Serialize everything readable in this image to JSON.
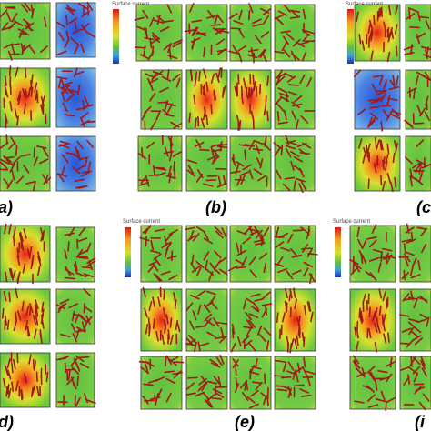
{
  "panels": [
    {
      "label": "a)"
    },
    {
      "label": "(b)",
      "colorbar_title": "Surface current"
    },
    {
      "label": "(c",
      "colorbar_title": "Surface current"
    },
    {
      "label": "d)"
    },
    {
      "label": "(e)",
      "colorbar_title": "Surface current"
    },
    {
      "label": "(i",
      "colorbar_title": "Surface current"
    }
  ]
}
